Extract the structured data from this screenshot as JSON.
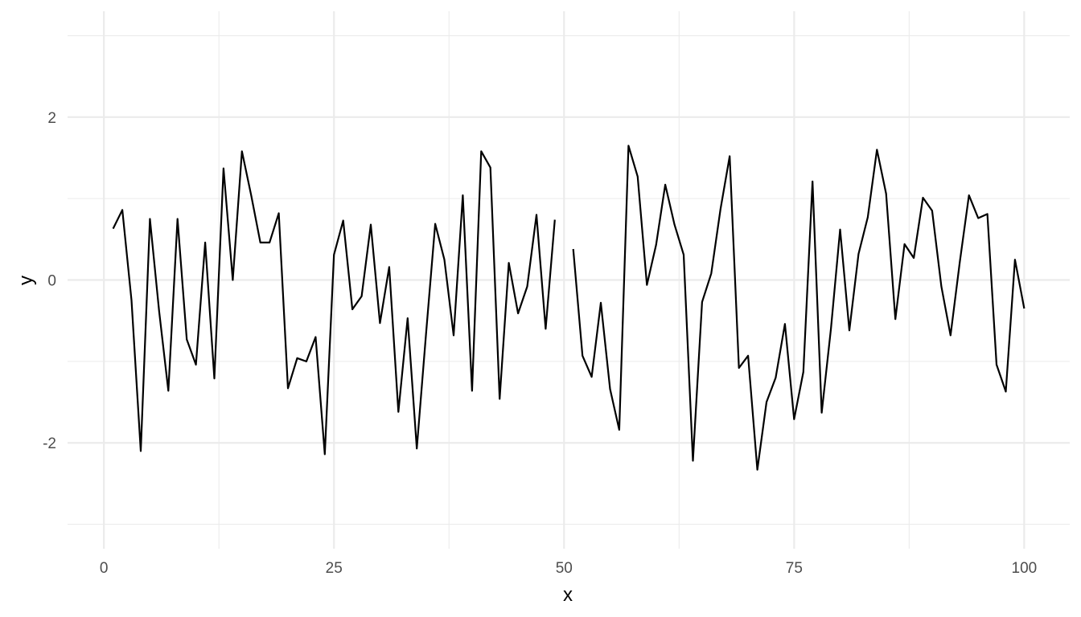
{
  "chart_data": {
    "type": "line",
    "title": "",
    "xlabel": "x",
    "ylabel": "y",
    "xlim": [
      -3.95,
      104.95
    ],
    "ylim": [
      -3.3,
      3.3
    ],
    "x_ticks": [
      0,
      25,
      50,
      75,
      100
    ],
    "x_tick_labels": [
      "0",
      "25",
      "50",
      "75",
      "100"
    ],
    "x_minor_ticks": [
      12.5,
      37.5,
      62.5,
      87.5
    ],
    "y_ticks": [
      -2,
      0,
      2
    ],
    "y_tick_labels": [
      "-2",
      "0",
      "2"
    ],
    "y_minor_ticks": [
      -3,
      -1,
      1,
      3
    ],
    "grid": true,
    "legend": "none",
    "line_color": "#000000",
    "grid_color": "#ebebeb",
    "series": [
      {
        "x": [
          1,
          2,
          3,
          4,
          5,
          6,
          7,
          8,
          9,
          10,
          11,
          12,
          13,
          14,
          15,
          16,
          17,
          18,
          19,
          20,
          21,
          22,
          23,
          24,
          25,
          26,
          27,
          28,
          29,
          30,
          31,
          32,
          33,
          34,
          35,
          36,
          37,
          38,
          39,
          40,
          41,
          42,
          43,
          44,
          45,
          46,
          47,
          48,
          49,
          50,
          51,
          52,
          53,
          54,
          55,
          56,
          57,
          58,
          59,
          60,
          61,
          62,
          63,
          64,
          65,
          66,
          67,
          68,
          69,
          70,
          71,
          72,
          73,
          74,
          75,
          76,
          77,
          78,
          79,
          80,
          81,
          82,
          83,
          84,
          85,
          86,
          87,
          88,
          89,
          90,
          91,
          92,
          93,
          94,
          95,
          96,
          97,
          98,
          99,
          100
        ],
        "values": [
          0.63,
          0.86,
          -0.25,
          -2.1,
          0.75,
          -0.38,
          -1.36,
          0.75,
          -0.73,
          -1.04,
          0.46,
          -1.21,
          1.37,
          0.0,
          1.58,
          1.04,
          0.46,
          0.46,
          0.82,
          -1.33,
          -0.96,
          -1.0,
          -0.7,
          -2.14,
          0.31,
          0.73,
          -0.36,
          -0.2,
          0.68,
          -0.53,
          0.16,
          -1.62,
          -0.47,
          -2.07,
          -0.66,
          0.69,
          0.25,
          -0.68,
          1.04,
          -1.36,
          1.58,
          1.38,
          -1.46,
          0.21,
          -0.41,
          -0.08,
          0.8,
          -0.6,
          0.74,
          null,
          0.38,
          -0.93,
          -1.19,
          -0.28,
          -1.34,
          -1.84,
          1.65,
          1.27,
          -0.06,
          0.43,
          1.17,
          0.68,
          0.31,
          -2.22,
          -0.27,
          0.08,
          0.87,
          1.52,
          -1.08,
          -0.93,
          -2.33,
          -1.5,
          -1.2,
          -0.54,
          -1.71,
          -1.13,
          1.21,
          -1.63,
          -0.6,
          0.62,
          -0.62,
          0.32,
          0.77,
          1.6,
          1.06,
          -0.48,
          0.44,
          0.27,
          1.01,
          0.85,
          -0.08,
          -0.68,
          0.22,
          1.04,
          0.76,
          0.81,
          -1.04,
          -1.37,
          0.25,
          -0.35
        ]
      }
    ]
  }
}
